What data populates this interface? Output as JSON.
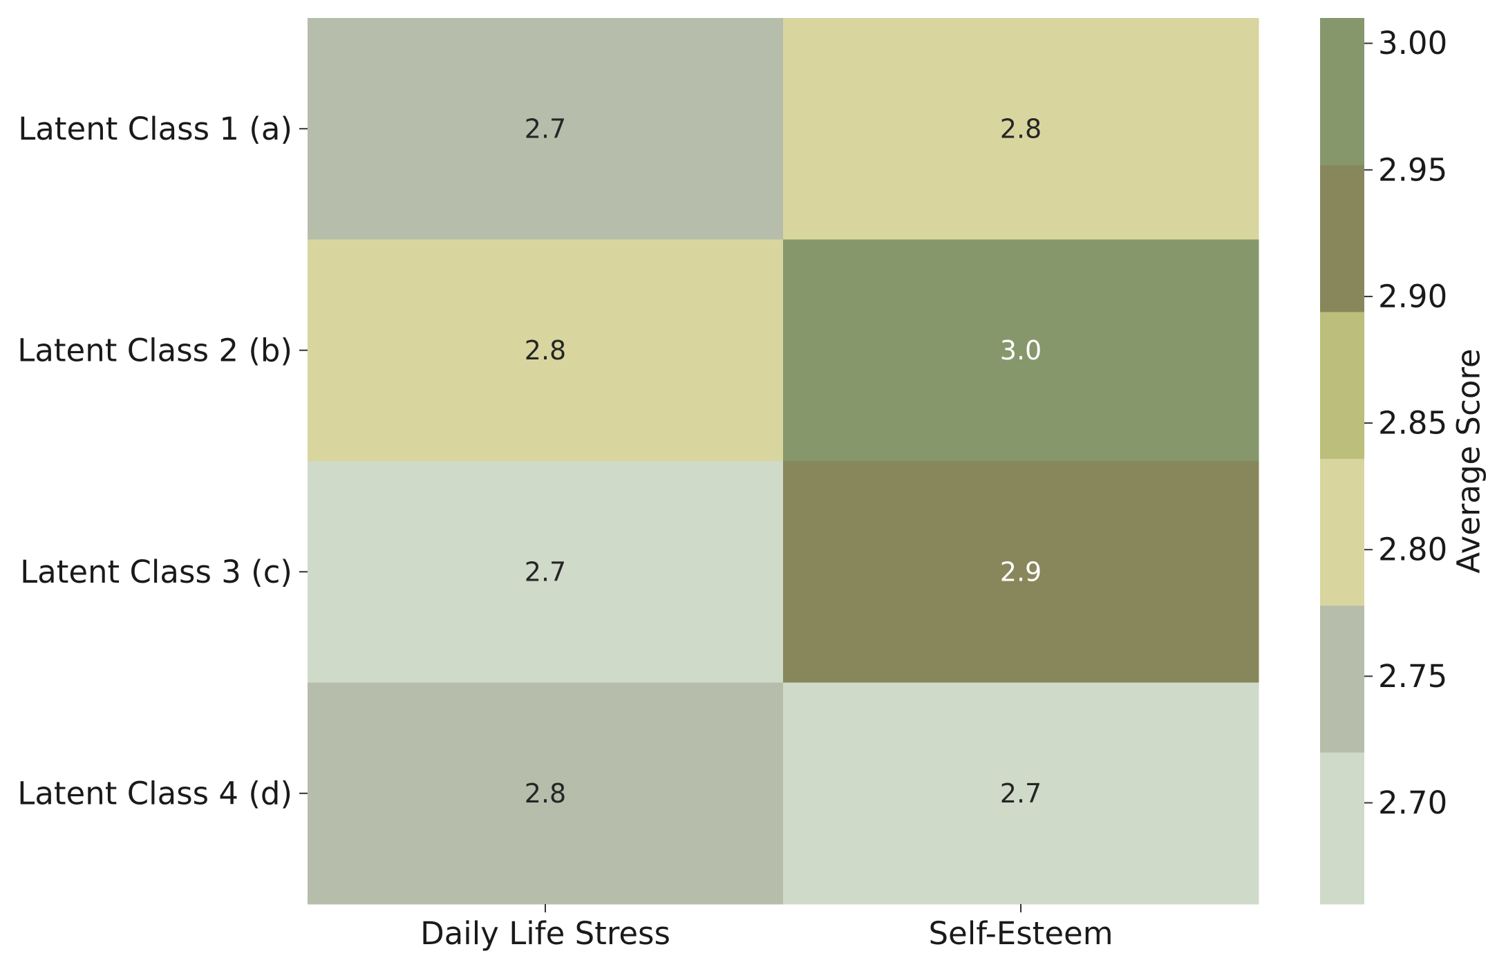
{
  "chart_data": {
    "type": "heatmap",
    "title": "",
    "xlabel": "",
    "ylabel": "",
    "rows": [
      "Latent Class 1 (a)",
      "Latent Class 2 (b)",
      "Latent Class 3 (c)",
      "Latent Class 4 (d)"
    ],
    "columns": [
      "Daily Life Stress",
      "Self-Esteem"
    ],
    "values": [
      [
        2.7,
        2.8
      ],
      [
        2.8,
        3.0
      ],
      [
        2.7,
        2.9
      ],
      [
        2.8,
        2.7
      ]
    ],
    "underlying_values": [
      [
        2.74,
        2.8
      ],
      [
        2.8,
        2.98
      ],
      [
        2.68,
        2.91
      ],
      [
        2.75,
        2.68
      ]
    ],
    "colorbar": {
      "label": "Average Score",
      "range": [
        2.66,
        3.01
      ],
      "ticks": [
        "2.70",
        "2.75",
        "2.80",
        "2.85",
        "2.90",
        "2.95",
        "3.00"
      ],
      "bands": [
        {
          "from": 2.66,
          "to": 2.72,
          "color": "#cfdac8"
        },
        {
          "from": 2.72,
          "to": 2.778,
          "color": "#b6bdab"
        },
        {
          "from": 2.778,
          "to": 2.836,
          "color": "#d8d69e"
        },
        {
          "from": 2.836,
          "to": 2.894,
          "color": "#bcbe7b"
        },
        {
          "from": 2.894,
          "to": 2.952,
          "color": "#87875b"
        },
        {
          "from": 2.952,
          "to": 3.01,
          "color": "#86976c"
        }
      ]
    },
    "grid": false,
    "legend": "colorbar-right"
  }
}
